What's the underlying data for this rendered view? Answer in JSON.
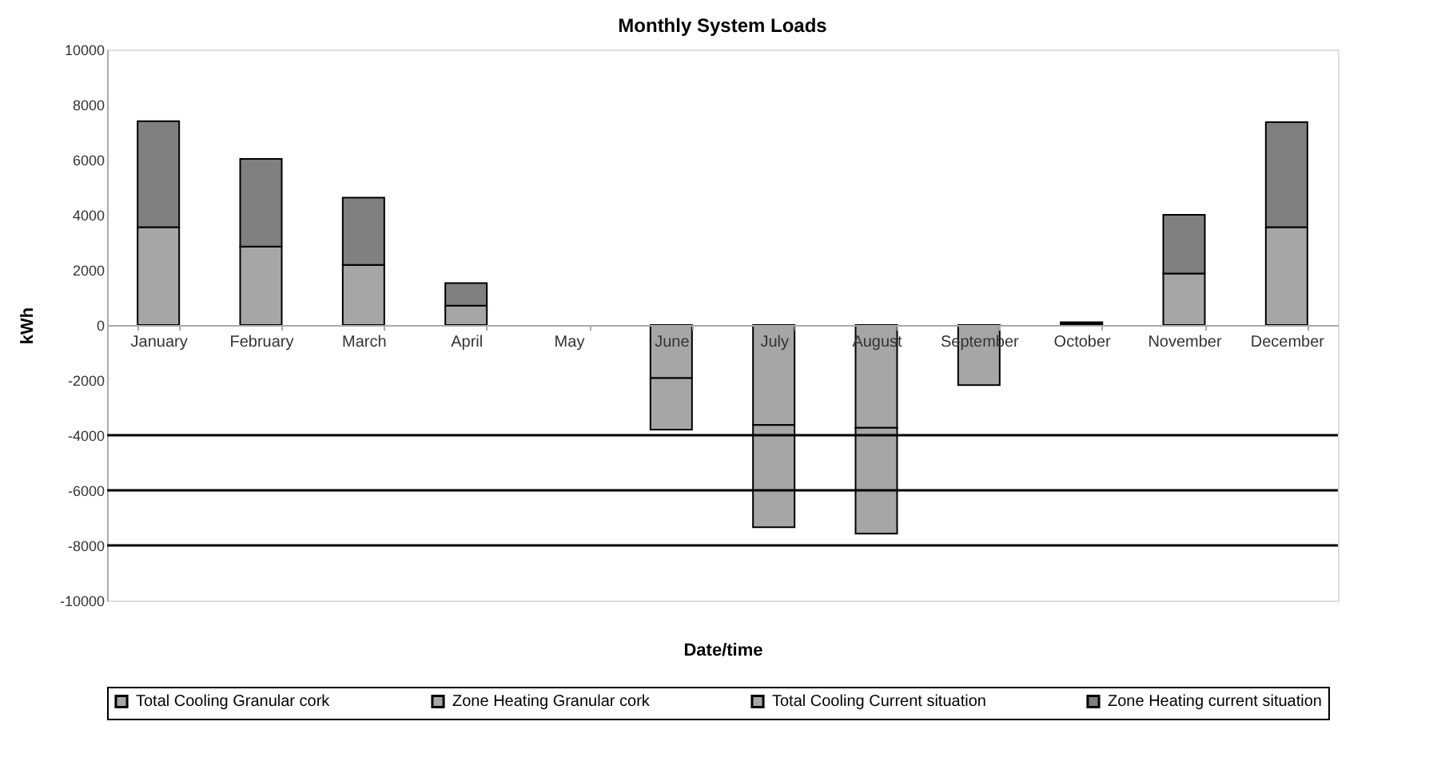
{
  "chart_data": {
    "type": "bar",
    "title": "Monthly System Loads",
    "xlabel": "Date/time",
    "ylabel": "kWh",
    "categories": [
      "January",
      "February",
      "March",
      "April",
      "May",
      "June",
      "July",
      "August",
      "September",
      "October",
      "November",
      "December"
    ],
    "stacked": true,
    "series": [
      {
        "name": "Total Cooling Granular cork",
        "color": "#a6a6a6",
        "values": [
          0,
          0,
          0,
          0,
          0,
          -1930,
          -3630,
          -3730,
          -2180,
          0,
          0,
          0
        ]
      },
      {
        "name": "Zone Heating Granular cork",
        "color": "#a6a6a6",
        "values": [
          3550,
          2850,
          2180,
          700,
          0,
          0,
          0,
          0,
          0,
          50,
          1870,
          3550
        ]
      },
      {
        "name": "Total Cooling Current situation",
        "color": "#a6a6a6",
        "values": [
          0,
          0,
          0,
          0,
          0,
          -1870,
          -3710,
          -3840,
          null,
          0,
          0,
          0
        ]
      },
      {
        "name": "Zone Heating current situation",
        "color": "#808080",
        "values": [
          3850,
          3180,
          2440,
          820,
          0,
          0,
          0,
          0,
          0,
          50,
          2130,
          3810
        ]
      }
    ],
    "ylim": [
      -10000,
      10000
    ],
    "yticks": [
      -10000,
      -8000,
      -6000,
      -4000,
      -2000,
      0,
      2000,
      4000,
      6000,
      8000,
      10000
    ],
    "ref_lines": [
      {
        "axis": "y",
        "value": -4000,
        "label": null,
        "color": "#000000"
      },
      {
        "axis": "y",
        "value": -6000,
        "label": null,
        "color": "#000000"
      },
      {
        "axis": "y",
        "value": -8000,
        "label": null,
        "color": "#000000"
      }
    ],
    "legend": "bottom"
  }
}
